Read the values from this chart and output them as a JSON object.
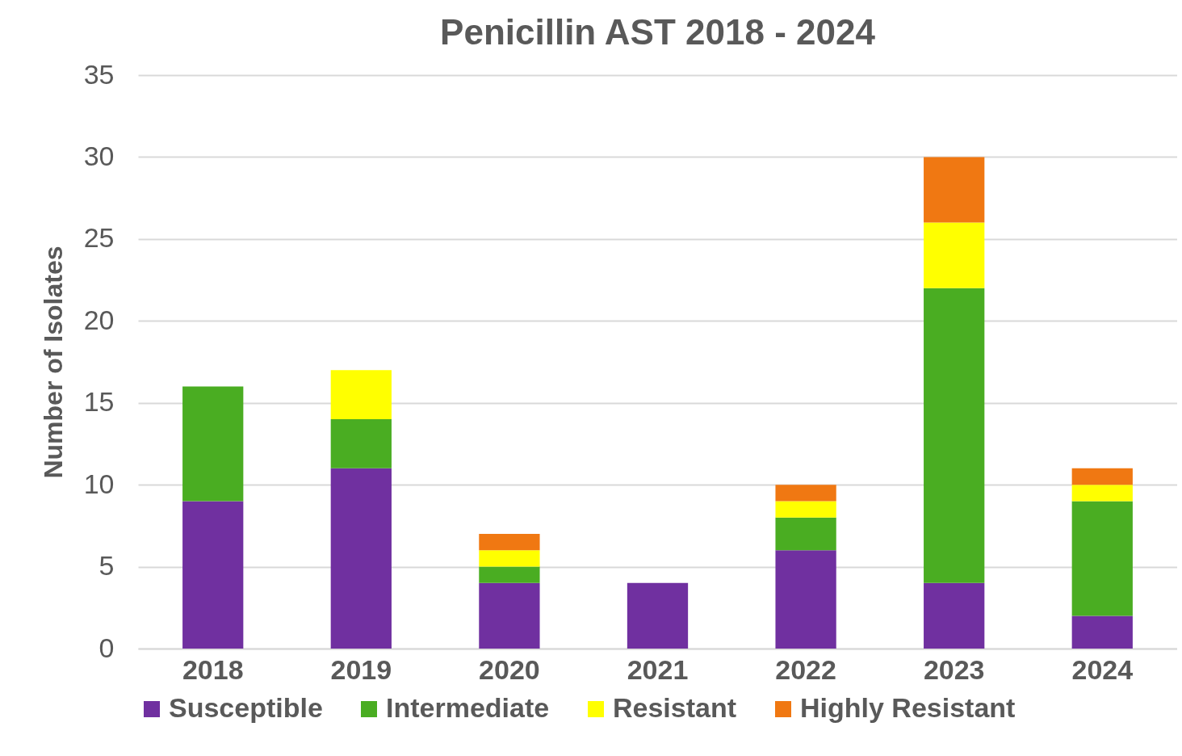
{
  "chart_data": {
    "type": "bar",
    "title": "Penicillin AST 2018 - 2024",
    "ylabel": "Number of Isolates",
    "categories": [
      "2018",
      "2019",
      "2020",
      "2021",
      "2022",
      "2023",
      "2024"
    ],
    "stacked": true,
    "series": [
      {
        "name": "Susceptible",
        "color": "#7030a0",
        "values": [
          9,
          11,
          4,
          4,
          6,
          4,
          2
        ]
      },
      {
        "name": "Intermediate",
        "color": "#4aad22",
        "values": [
          7,
          3,
          1,
          0,
          2,
          18,
          7
        ]
      },
      {
        "name": "Resistant",
        "color": "#ffff00",
        "values": [
          0,
          3,
          1,
          0,
          1,
          4,
          1
        ]
      },
      {
        "name": "Highly Resistant",
        "color": "#f07812",
        "values": [
          0,
          0,
          1,
          0,
          1,
          4,
          1
        ]
      }
    ],
    "ylim": [
      0,
      35
    ],
    "yticks": [
      0,
      5,
      10,
      15,
      20,
      25,
      30,
      35
    ],
    "grid": "y",
    "legend": "bottom"
  }
}
